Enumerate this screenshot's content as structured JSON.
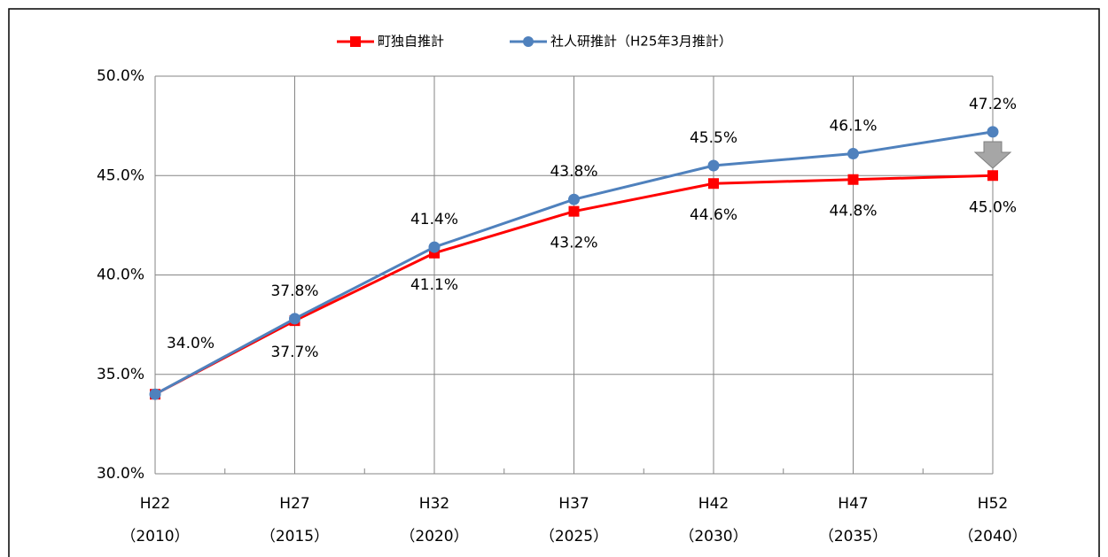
{
  "chart_data": {
    "type": "line",
    "categories": [
      "H22",
      "H27",
      "H32",
      "H37",
      "H42",
      "H47",
      "H52"
    ],
    "category_years": [
      "（2010）",
      "（2015）",
      "（2020）",
      "（2025）",
      "（2030）",
      "（2035）",
      "（2040）"
    ],
    "series": [
      {
        "name": "町独自推計",
        "color": "#ff0000",
        "marker": "square",
        "values": [
          34.0,
          37.7,
          41.1,
          43.2,
          44.6,
          44.8,
          45.0
        ],
        "value_labels": [
          null,
          "37.7%",
          "41.1%",
          "43.2%",
          "44.6%",
          "44.8%",
          "45.0%"
        ]
      },
      {
        "name": "社人研推計（H25年3月推計）",
        "color": "#4f81bd",
        "marker": "circle",
        "values": [
          34.0,
          37.8,
          41.4,
          43.8,
          45.5,
          46.1,
          47.2
        ],
        "value_labels": [
          "34.0%",
          "37.8%",
          "41.4%",
          "43.8%",
          "45.5%",
          "46.1%",
          "47.2%"
        ]
      }
    ],
    "ylim": [
      30,
      50
    ],
    "yticks": [
      {
        "value": 30,
        "label": "30.0%"
      },
      {
        "value": 35,
        "label": "35.0%"
      },
      {
        "value": 40,
        "label": "40.0%"
      },
      {
        "value": 45,
        "label": "45.0%"
      },
      {
        "value": 50,
        "label": "50.0%"
      }
    ],
    "grid": true,
    "legend": "top"
  }
}
